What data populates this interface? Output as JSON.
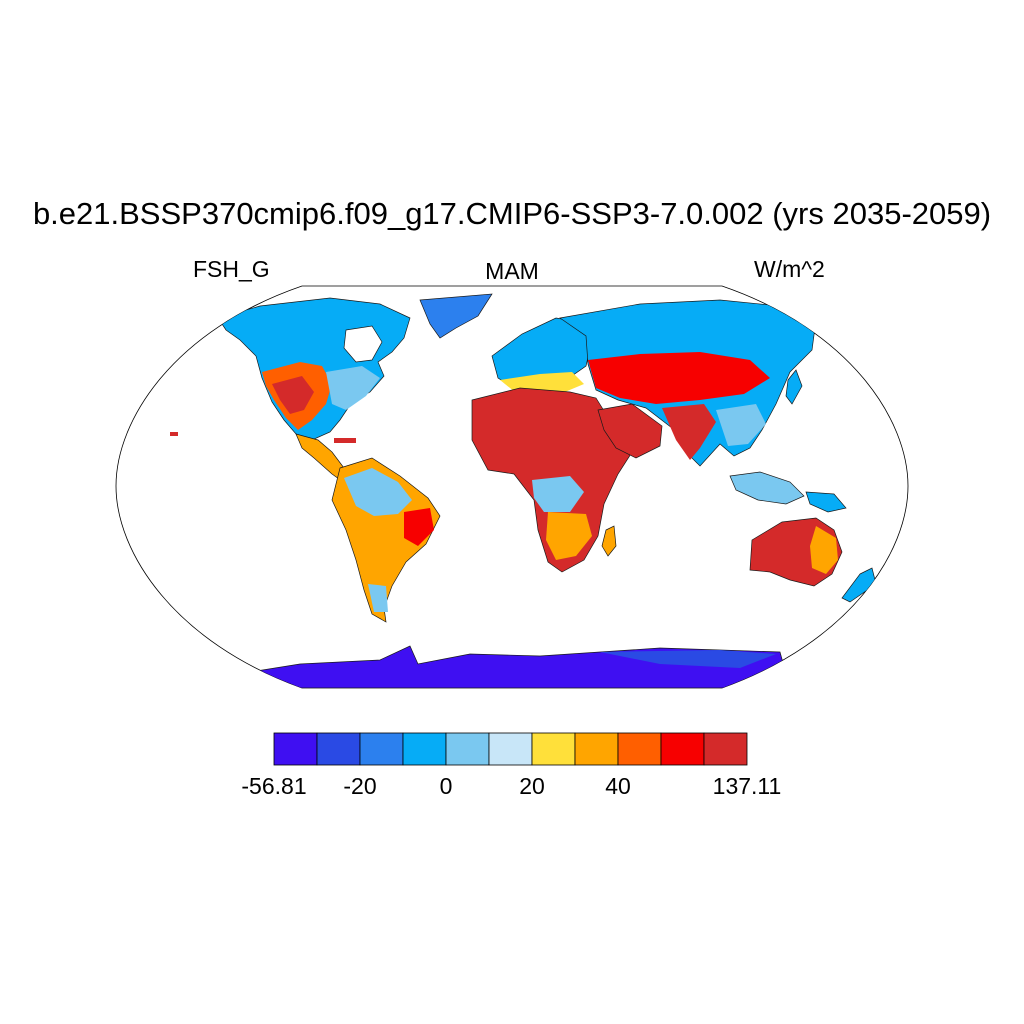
{
  "title": "b.e21.BSSP370cmip6.f09_g17.CMIP6-SSP3-7.0.002 (yrs 2035-2059)",
  "left_subtitle": "FSH_G",
  "center_subtitle": "MAM",
  "right_subtitle": "W/m^2",
  "colorbar": {
    "colors": [
      "#3f0ff2",
      "#2a4ae4",
      "#2c80ee",
      "#06acf6",
      "#7ac8f0",
      "#c8e6f8",
      "#ffe03a",
      "#ffa500",
      "#ff5f00",
      "#f70000",
      "#d42a2a"
    ],
    "tick_labels": [
      "-56.81",
      "-20",
      "0",
      "20",
      "40",
      "137.11"
    ]
  },
  "colors": {
    "ocean": "#ffffff",
    "coast": "#1a1a1a",
    "greenland": "#2c80ee",
    "antarctica": "#3f0ff2"
  }
}
